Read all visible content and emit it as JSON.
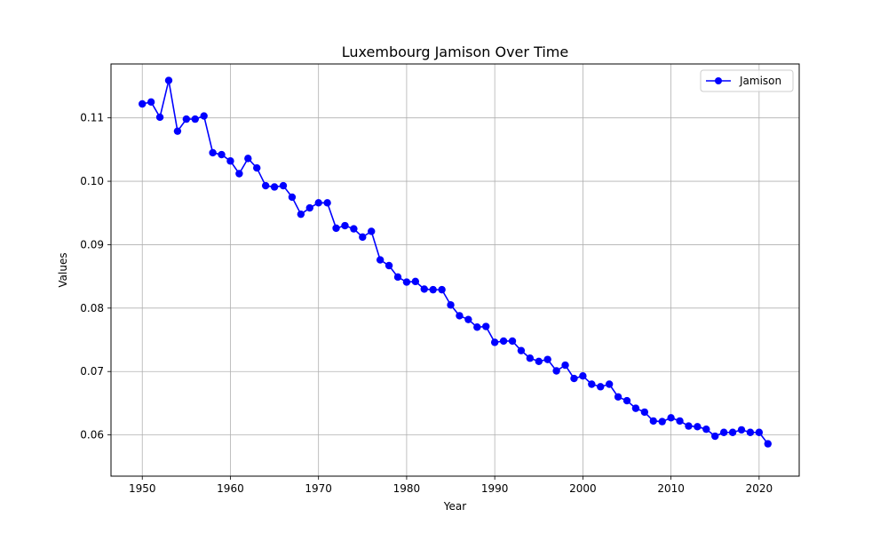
{
  "chart_data": {
    "type": "line",
    "title": "Luxembourg Jamison Over Time",
    "xlabel": "Year",
    "ylabel": "Values",
    "xlim": [
      1946.45,
      2024.55
    ],
    "ylim": [
      0.0535,
      0.1185
    ],
    "xticks": [
      1950,
      1960,
      1970,
      1980,
      1990,
      2000,
      2010,
      2020
    ],
    "yticks": [
      0.06,
      0.07,
      0.08,
      0.09,
      0.1,
      0.11
    ],
    "ytick_labels": [
      "0.06",
      "0.07",
      "0.08",
      "0.09",
      "0.10",
      "0.11"
    ],
    "grid": true,
    "legend_position": "top-right",
    "series": [
      {
        "name": "Jamison",
        "color": "#0000ff",
        "marker": "circle",
        "x": [
          1950,
          1951,
          1952,
          1953,
          1954,
          1955,
          1956,
          1957,
          1958,
          1959,
          1960,
          1961,
          1962,
          1963,
          1964,
          1965,
          1966,
          1967,
          1968,
          1969,
          1970,
          1971,
          1972,
          1973,
          1974,
          1975,
          1976,
          1977,
          1978,
          1979,
          1980,
          1981,
          1982,
          1983,
          1984,
          1985,
          1986,
          1987,
          1988,
          1989,
          1990,
          1991,
          1992,
          1993,
          1994,
          1995,
          1996,
          1997,
          1998,
          1999,
          2000,
          2001,
          2002,
          2003,
          2004,
          2005,
          2006,
          2007,
          2008,
          2009,
          2010,
          2011,
          2012,
          2013,
          2014,
          2015,
          2016,
          2017,
          2018,
          2019,
          2020,
          2021
        ],
        "values": [
          0.1122,
          0.1125,
          0.1101,
          0.1159,
          0.1079,
          0.1098,
          0.1098,
          0.1103,
          0.1045,
          0.1042,
          0.1032,
          0.1012,
          0.1036,
          0.1021,
          0.0993,
          0.0991,
          0.0993,
          0.0975,
          0.0948,
          0.0958,
          0.0966,
          0.0966,
          0.0926,
          0.093,
          0.0925,
          0.0912,
          0.0921,
          0.0876,
          0.0867,
          0.0849,
          0.0841,
          0.0842,
          0.083,
          0.0829,
          0.0829,
          0.0805,
          0.0788,
          0.0782,
          0.077,
          0.0771,
          0.0746,
          0.0748,
          0.0748,
          0.0733,
          0.0721,
          0.0716,
          0.0719,
          0.0701,
          0.071,
          0.0689,
          0.0693,
          0.068,
          0.0676,
          0.068,
          0.066,
          0.0654,
          0.0642,
          0.0636,
          0.0622,
          0.0621,
          0.0627,
          0.0622,
          0.0614,
          0.0613,
          0.0609,
          0.0598,
          0.0604,
          0.0604,
          0.0608,
          0.0604,
          0.0604,
          0.0586
        ]
      }
    ]
  }
}
